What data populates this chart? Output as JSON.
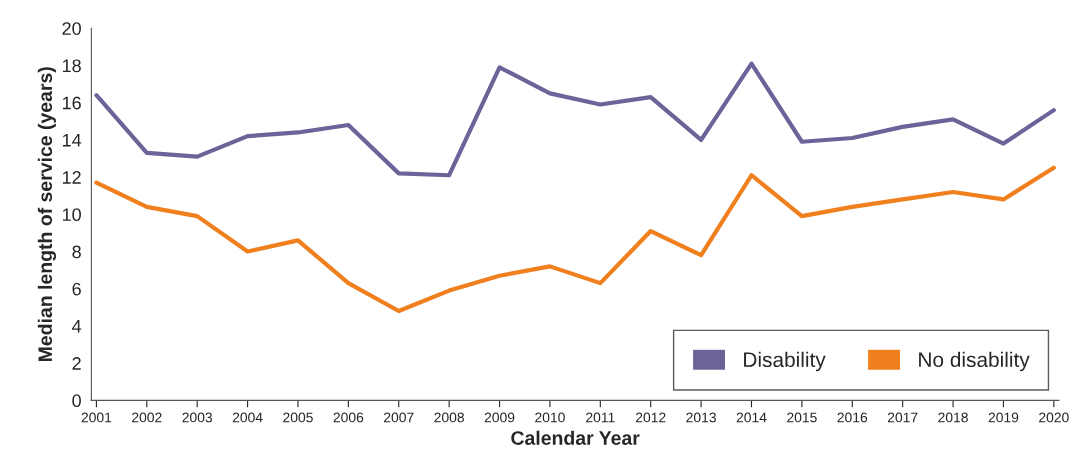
{
  "chart_data": {
    "type": "line",
    "xlabel": "Calendar Year",
    "ylabel": "Median length of service (years)",
    "categories": [
      "2001",
      "2002",
      "2003",
      "2004",
      "2005",
      "2006",
      "2007",
      "2008",
      "2009",
      "2010",
      "2011",
      "2012",
      "2013",
      "2014",
      "2015",
      "2016",
      "2017",
      "2018",
      "2019",
      "2020"
    ],
    "series": [
      {
        "name": "Disability",
        "color": "#6e6399",
        "values": [
          16.4,
          13.3,
          13.1,
          14.2,
          14.4,
          14.8,
          12.2,
          12.1,
          17.9,
          16.5,
          15.9,
          16.3,
          14.0,
          18.1,
          13.9,
          14.1,
          14.7,
          15.1,
          13.8,
          15.6
        ]
      },
      {
        "name": "No disability",
        "color": "#f07f1e",
        "values": [
          11.7,
          10.4,
          9.9,
          8.0,
          8.6,
          6.3,
          4.8,
          5.9,
          6.7,
          7.2,
          6.3,
          9.1,
          7.8,
          12.1,
          9.9,
          10.4,
          10.8,
          11.2,
          10.8,
          12.5
        ]
      }
    ],
    "ylim": [
      0,
      20
    ],
    "yticks": [
      0,
      2,
      4,
      6,
      8,
      10,
      12,
      14,
      16,
      18,
      20
    ],
    "grid": false,
    "legend": "bottom right"
  }
}
